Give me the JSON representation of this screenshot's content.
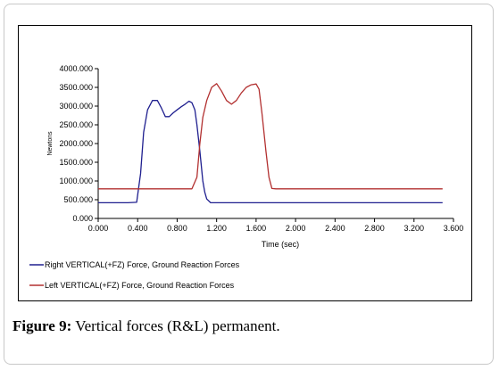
{
  "chart_data": {
    "type": "line",
    "title": "",
    "xlabel": "Time (sec)",
    "ylabel": "Newtons",
    "xlim": [
      0,
      3.6
    ],
    "ylim": [
      0,
      4000
    ],
    "x_ticks": [
      "0.000",
      "0.400",
      "0.800",
      "1.200",
      "1.600",
      "2.000",
      "2.400",
      "2.800",
      "3.200",
      "3.600"
    ],
    "y_ticks": [
      "0.000",
      "500.000",
      "1000.000",
      "1500.000",
      "2000.000",
      "2500.000",
      "3000.000",
      "3500.000",
      "4000.000"
    ],
    "x_tick_values": [
      0,
      0.4,
      0.8,
      1.2,
      1.6,
      2.0,
      2.4,
      2.8,
      3.2,
      3.6
    ],
    "y_tick_values": [
      0,
      500,
      1000,
      1500,
      2000,
      2500,
      3000,
      3500,
      4000
    ],
    "grid": false,
    "legend_position": "bottom",
    "series": [
      {
        "name": "Right VERTICAL(+FZ) Force, Ground Reaction Forces",
        "color": "#1f1f8f",
        "x": [
          0.0,
          0.1,
          0.2,
          0.3,
          0.39,
          0.43,
          0.46,
          0.5,
          0.55,
          0.6,
          0.64,
          0.68,
          0.72,
          0.76,
          0.8,
          0.84,
          0.88,
          0.92,
          0.95,
          0.98,
          1.0,
          1.03,
          1.06,
          1.08,
          1.1,
          1.14,
          1.2,
          1.3,
          1.5,
          2.0,
          2.5,
          3.0,
          3.49
        ],
        "y": [
          420,
          420,
          420,
          420,
          430,
          1200,
          2300,
          2900,
          3150,
          3150,
          2950,
          2720,
          2720,
          2820,
          2900,
          2980,
          3050,
          3130,
          3090,
          2900,
          2500,
          1800,
          1000,
          700,
          520,
          420,
          420,
          420,
          420,
          420,
          420,
          420,
          420
        ]
      },
      {
        "name": "Left VERTICAL(+FZ) Force, Ground Reaction Forces",
        "color": "#b23030",
        "x": [
          0.0,
          0.4,
          0.8,
          0.95,
          1.0,
          1.03,
          1.06,
          1.1,
          1.15,
          1.2,
          1.25,
          1.3,
          1.35,
          1.4,
          1.45,
          1.5,
          1.55,
          1.6,
          1.63,
          1.66,
          1.7,
          1.73,
          1.76,
          1.8,
          2.0,
          2.5,
          3.0,
          3.49
        ],
        "y": [
          790,
          790,
          790,
          790,
          1100,
          2000,
          2700,
          3150,
          3500,
          3600,
          3400,
          3150,
          3050,
          3150,
          3350,
          3500,
          3570,
          3590,
          3450,
          2800,
          1800,
          1100,
          800,
          790,
          790,
          790,
          790,
          790
        ]
      }
    ]
  },
  "caption": {
    "label": "Figure 9:",
    "text": "Vertical forces (R&L) permanent."
  }
}
